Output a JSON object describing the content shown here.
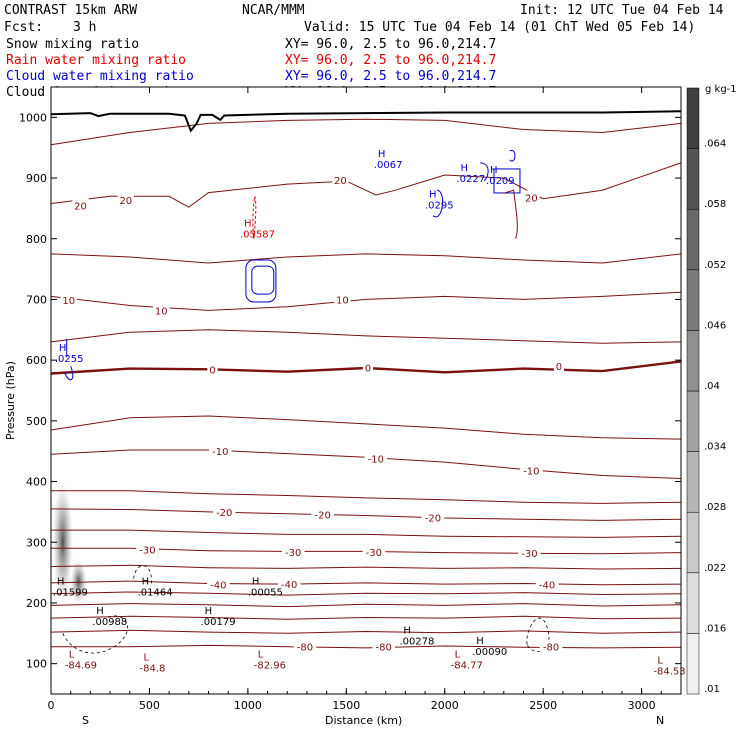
{
  "header": {
    "model": "CONTRAST 15km ARW",
    "org": "NCAR/MMM",
    "init": "Init: 12 UTC Tue 04 Feb 14",
    "fcst_label": "Fcst:",
    "fcst_value": "3 h",
    "valid": "Valid: 15 UTC Tue 04 Feb 14 (01 ChT Wed 05 Feb 14)"
  },
  "fields": [
    {
      "name": "Snow mixing ratio",
      "xy": "XY=  96.0,  2.5 to  96.0,214.7",
      "color": "#000000"
    },
    {
      "name": "Rain water mixing ratio",
      "xy": "XY=  96.0,  2.5 to  96.0,214.7",
      "color": "#dd0000"
    },
    {
      "name": "Cloud water mixing ratio",
      "xy": "XY=  96.0,  2.5 to  96.0,214.7",
      "color": "#0000cc"
    },
    {
      "name": "Cloud ice mixing ratio",
      "xy": "XY=  96.0,  2.5 to  96.0,214.7",
      "color": "#000000"
    }
  ],
  "chart_data": {
    "type": "cross-section contour",
    "xlabel": "Distance (km)",
    "ylabel": "Pressure (hPa)",
    "xlim": [
      0,
      3200
    ],
    "ylim": [
      1050,
      50
    ],
    "x_ticks": [
      0,
      500,
      1000,
      1500,
      2000,
      2500,
      3000
    ],
    "y_ticks": [
      100,
      200,
      300,
      400,
      500,
      600,
      700,
      800,
      900,
      1000
    ],
    "x_end_labels": {
      "left": "S",
      "right": "N"
    },
    "temperature_contours": [
      {
        "value": -80,
        "label": "-80",
        "labels": [
          [
            1290,
            128
          ],
          [
            1690,
            128
          ],
          [
            2540,
            128
          ]
        ],
        "pts": [
          [
            0,
            128
          ],
          [
            400,
            128
          ],
          [
            800,
            130
          ],
          [
            1200,
            128
          ],
          [
            1600,
            126
          ],
          [
            2000,
            129
          ],
          [
            2400,
            127
          ],
          [
            2800,
            126
          ],
          [
            3200,
            127
          ]
        ]
      },
      {
        "value": -70,
        "label": "",
        "labels": [],
        "pts": [
          [
            0,
            152
          ],
          [
            400,
            155
          ],
          [
            800,
            152
          ],
          [
            1200,
            150
          ],
          [
            1600,
            153
          ],
          [
            2000,
            151
          ],
          [
            2400,
            154
          ],
          [
            2800,
            150
          ],
          [
            3200,
            152
          ]
        ]
      },
      {
        "value": -60,
        "label": "",
        "labels": [],
        "pts": [
          [
            0,
            175
          ],
          [
            400,
            178
          ],
          [
            800,
            176
          ],
          [
            1200,
            173
          ],
          [
            1600,
            176
          ],
          [
            2000,
            175
          ],
          [
            2400,
            178
          ],
          [
            2800,
            174
          ],
          [
            3200,
            175
          ]
        ]
      },
      {
        "value": -50,
        "label": "",
        "labels": [],
        "pts": [
          [
            0,
            196
          ],
          [
            400,
            199
          ],
          [
            800,
            197
          ],
          [
            1200,
            194
          ],
          [
            1600,
            198
          ],
          [
            2000,
            196
          ],
          [
            2400,
            199
          ],
          [
            2800,
            195
          ],
          [
            3200,
            197
          ]
        ]
      },
      {
        "value": -45,
        "label": "",
        "labels": [],
        "pts": [
          [
            0,
            215
          ],
          [
            400,
            218
          ],
          [
            800,
            216
          ],
          [
            1200,
            213
          ],
          [
            1600,
            216
          ],
          [
            2000,
            215
          ],
          [
            2400,
            217
          ],
          [
            2800,
            214
          ],
          [
            3200,
            215
          ]
        ]
      },
      {
        "value": -40,
        "label": "-40",
        "labels": [
          [
            850,
            230
          ],
          [
            1210,
            231
          ],
          [
            2520,
            230
          ]
        ],
        "pts": [
          [
            0,
            233
          ],
          [
            400,
            236
          ],
          [
            800,
            232
          ],
          [
            1200,
            231
          ],
          [
            1600,
            233
          ],
          [
            2000,
            231
          ],
          [
            2400,
            232
          ],
          [
            2800,
            230
          ],
          [
            3200,
            231
          ]
        ]
      },
      {
        "value": -35,
        "label": "",
        "labels": [],
        "pts": [
          [
            0,
            260
          ],
          [
            400,
            262
          ],
          [
            800,
            258
          ],
          [
            1200,
            257
          ],
          [
            1600,
            259
          ],
          [
            2000,
            257
          ],
          [
            2400,
            258
          ],
          [
            2800,
            256
          ],
          [
            3200,
            257
          ]
        ]
      },
      {
        "value": -30,
        "label": "-30",
        "labels": [
          [
            490,
            288
          ],
          [
            1230,
            284
          ],
          [
            1640,
            284
          ],
          [
            2430,
            282
          ]
        ],
        "pts": [
          [
            0,
            290
          ],
          [
            400,
            290
          ],
          [
            800,
            286
          ],
          [
            1200,
            285
          ],
          [
            1600,
            285
          ],
          [
            2000,
            283
          ],
          [
            2400,
            282
          ],
          [
            2800,
            281
          ],
          [
            3200,
            283
          ]
        ]
      },
      {
        "value": -25,
        "label": "",
        "labels": [],
        "pts": [
          [
            0,
            320
          ],
          [
            400,
            320
          ],
          [
            800,
            316
          ],
          [
            1200,
            313
          ],
          [
            1600,
            313
          ],
          [
            2000,
            310
          ],
          [
            2400,
            309
          ],
          [
            2800,
            308
          ],
          [
            3200,
            310
          ]
        ]
      },
      {
        "value": -20,
        "label": "-20",
        "labels": [
          [
            880,
            350
          ],
          [
            1380,
            346
          ],
          [
            1940,
            341
          ]
        ],
        "pts": [
          [
            0,
            355
          ],
          [
            400,
            354
          ],
          [
            800,
            350
          ],
          [
            1200,
            347
          ],
          [
            1600,
            344
          ],
          [
            2000,
            340
          ],
          [
            2400,
            338
          ],
          [
            2800,
            336
          ],
          [
            3200,
            338
          ]
        ]
      },
      {
        "value": -15,
        "label": "",
        "labels": [],
        "pts": [
          [
            0,
            385
          ],
          [
            400,
            385
          ],
          [
            800,
            380
          ],
          [
            1200,
            377
          ],
          [
            1600,
            373
          ],
          [
            2000,
            370
          ],
          [
            2400,
            366
          ],
          [
            2800,
            364
          ],
          [
            3200,
            366
          ]
        ]
      },
      {
        "value": -10,
        "label": "-10",
        "labels": [
          [
            860,
            450
          ],
          [
            1650,
            438
          ],
          [
            2440,
            418
          ]
        ],
        "pts": [
          [
            0,
            445
          ],
          [
            400,
            452
          ],
          [
            800,
            452
          ],
          [
            1200,
            446
          ],
          [
            1600,
            440
          ],
          [
            2000,
            432
          ],
          [
            2400,
            420
          ],
          [
            2800,
            410
          ],
          [
            3200,
            405
          ]
        ]
      },
      {
        "value": -5,
        "label": "",
        "labels": [],
        "pts": [
          [
            0,
            485
          ],
          [
            400,
            505
          ],
          [
            800,
            508
          ],
          [
            1200,
            502
          ],
          [
            1600,
            495
          ],
          [
            2000,
            488
          ],
          [
            2400,
            478
          ],
          [
            2800,
            472
          ],
          [
            3200,
            470
          ]
        ]
      },
      {
        "value": 0,
        "label": "0",
        "labels": [
          [
            820,
            585
          ],
          [
            1610,
            588
          ],
          [
            2580,
            590
          ]
        ],
        "pts": [
          [
            0,
            578
          ],
          [
            400,
            586
          ],
          [
            800,
            585
          ],
          [
            1200,
            581
          ],
          [
            1600,
            587
          ],
          [
            2000,
            580
          ],
          [
            2400,
            586
          ],
          [
            2800,
            582
          ],
          [
            3200,
            598
          ]
        ]
      },
      {
        "value": 5,
        "label": "",
        "labels": [],
        "pts": [
          [
            0,
            630
          ],
          [
            400,
            646
          ],
          [
            800,
            650
          ],
          [
            1200,
            646
          ],
          [
            1600,
            640
          ],
          [
            2000,
            636
          ],
          [
            2400,
            632
          ],
          [
            2800,
            628
          ],
          [
            3200,
            630
          ]
        ]
      },
      {
        "value": 10,
        "label": "10",
        "labels": [
          [
            90,
            699
          ],
          [
            560,
            682
          ],
          [
            1480,
            700
          ]
        ],
        "pts": [
          [
            0,
            705
          ],
          [
            400,
            690
          ],
          [
            800,
            682
          ],
          [
            1200,
            688
          ],
          [
            1600,
            700
          ],
          [
            2000,
            705
          ],
          [
            2400,
            700
          ],
          [
            2800,
            705
          ],
          [
            3200,
            712
          ]
        ]
      },
      {
        "value": 15,
        "label": "",
        "labels": [],
        "pts": [
          [
            0,
            775
          ],
          [
            400,
            770
          ],
          [
            800,
            760
          ],
          [
            1200,
            770
          ],
          [
            1600,
            775
          ],
          [
            2000,
            772
          ],
          [
            2400,
            765
          ],
          [
            2800,
            760
          ],
          [
            3200,
            775
          ]
        ]
      },
      {
        "value": 20,
        "label": "20",
        "labels": [
          [
            150,
            855
          ],
          [
            380,
            864
          ],
          [
            1470,
            897
          ],
          [
            2440,
            868
          ]
        ],
        "pts": [
          [
            0,
            858
          ],
          [
            300,
            870
          ],
          [
            600,
            870
          ],
          [
            700,
            852
          ],
          [
            800,
            876
          ],
          [
            1200,
            890
          ],
          [
            1500,
            895
          ],
          [
            1650,
            872
          ],
          [
            1750,
            880
          ],
          [
            2000,
            905
          ],
          [
            2300,
            900
          ],
          [
            2500,
            866
          ],
          [
            2800,
            880
          ],
          [
            3200,
            925
          ]
        ]
      },
      {
        "value": 25,
        "label": "",
        "labels": [],
        "pts": [
          [
            0,
            955
          ],
          [
            400,
            975
          ],
          [
            800,
            990
          ],
          [
            1200,
            995
          ],
          [
            1600,
            997
          ],
          [
            2000,
            995
          ],
          [
            2400,
            980
          ],
          [
            2800,
            975
          ],
          [
            3200,
            990
          ]
        ]
      }
    ],
    "snow_maxima": [
      {
        "label": "H",
        "value": ".00988",
        "x": 230,
        "p": 182
      },
      {
        "label": "H",
        "value": ".00179",
        "x": 780,
        "p": 182
      },
      {
        "label": "H",
        "value": ".01599",
        "x": 30,
        "p": 230
      },
      {
        "label": "H",
        "value": ".01464",
        "x": 460,
        "p": 230
      },
      {
        "label": "H",
        "value": ".00055",
        "x": 1020,
        "p": 230
      },
      {
        "label": "H",
        "value": ".00278",
        "x": 1790,
        "p": 150
      },
      {
        "label": "H",
        "value": ".00090",
        "x": 2160,
        "p": 132
      }
    ],
    "cloud_ice_minima": [
      {
        "label": "L",
        "value": "-84.69",
        "x": 90,
        "p": 110
      },
      {
        "label": "L",
        "value": "-84.8",
        "x": 470,
        "p": 105
      },
      {
        "label": "L",
        "value": "-82.96",
        "x": 1050,
        "p": 110
      },
      {
        "label": "L",
        "value": "-84.77",
        "x": 2050,
        "p": 110
      },
      {
        "label": "L",
        "value": "-84.53",
        "x": 3080,
        "p": 100
      }
    ],
    "cloud_water_maxima": [
      {
        "label": "H",
        "value": ".0255",
        "x": 40,
        "p": 615
      },
      {
        "label": "H",
        "value": ".0295",
        "x": 1920,
        "p": 868
      },
      {
        "label": "H",
        "value": ".0067",
        "x": 1660,
        "p": 935
      },
      {
        "label": "H",
        "value": ".0227",
        "x": 2080,
        "p": 912
      },
      {
        "label": "H",
        "value": ".0209",
        "x": 2230,
        "p": 908
      }
    ],
    "rain_maxima": [
      {
        "label": "H",
        "value": ".05587",
        "x": 980,
        "p": 820
      }
    ],
    "colorbar": {
      "unit": "g kg-1",
      "levels": [
        0.01,
        0.016,
        0.022,
        0.028,
        0.034,
        0.04,
        0.046,
        0.052,
        0.058,
        0.064
      ],
      "labels": [
        ".01",
        ".016",
        ".022",
        ".028",
        ".034",
        ".04",
        ".046",
        ".052",
        ".058",
        ".064"
      ]
    }
  }
}
